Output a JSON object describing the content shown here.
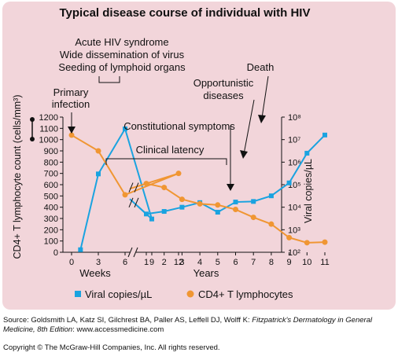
{
  "chart_data": {
    "type": "line",
    "title": "Typical disease course of individual with HIV",
    "left_axis": {
      "label": "CD4+ T lymphocyte count (cells/mm³)",
      "ticks": [
        "0",
        "100",
        "200",
        "300",
        "400",
        "500",
        "600",
        "700",
        "800",
        "900",
        "1000",
        "1100",
        "1200"
      ],
      "ylim": [
        0,
        1200
      ]
    },
    "right_axis": {
      "label": "Viral copies/µL",
      "scale": "log",
      "ticks": [
        "10²",
        "10³",
        "10⁴",
        "10⁵",
        "10⁶",
        "10⁷",
        "10⁸"
      ],
      "ylim": [
        100,
        100000000
      ]
    },
    "x_segments": [
      {
        "label": "Weeks",
        "ticks": [
          "0",
          "3",
          "6",
          "9",
          "12"
        ]
      },
      {
        "label": "Years",
        "ticks": [
          "1",
          "2",
          "3",
          "4",
          "5",
          "6",
          "7",
          "8",
          "9",
          "10",
          "11"
        ]
      }
    ],
    "series": [
      {
        "name": "Viral copies/µL",
        "color": "#1aa3e0",
        "marker": "square",
        "axis": "right",
        "points": [
          {
            "seg": 0,
            "x": 1,
            "y": 130
          },
          {
            "seg": 0,
            "x": 3,
            "y": 300000
          },
          {
            "seg": 0,
            "x": 6,
            "y": 30000000
          },
          {
            "seg": 0,
            "x": 9,
            "y": 3000
          },
          {
            "seg": 1,
            "x": 1,
            "y": 5000
          },
          {
            "seg": 1,
            "x": 2,
            "y": 6500
          },
          {
            "seg": 1,
            "x": 3,
            "y": 10000
          },
          {
            "seg": 1,
            "x": 4,
            "y": 16000
          },
          {
            "seg": 1,
            "x": 5,
            "y": 6000
          },
          {
            "seg": 1,
            "x": 6,
            "y": 17000
          },
          {
            "seg": 1,
            "x": 7,
            "y": 18000
          },
          {
            "seg": 1,
            "x": 8,
            "y": 32000
          },
          {
            "seg": 1,
            "x": 9,
            "y": 120000
          },
          {
            "seg": 1,
            "x": 10,
            "y": 2500000
          },
          {
            "seg": 1,
            "x": 11,
            "y": 16000000
          }
        ]
      },
      {
        "name": "CD4+ T lymphocytes",
        "color": "#f09633",
        "marker": "circle",
        "axis": "left",
        "points": [
          {
            "seg": 0,
            "x": 0,
            "y": 1040
          },
          {
            "seg": 0,
            "x": 3,
            "y": 900
          },
          {
            "seg": 0,
            "x": 6,
            "y": 510
          },
          {
            "seg": 0,
            "x": 12,
            "y": 700
          },
          {
            "seg": 1,
            "x": 1,
            "y": 610
          },
          {
            "seg": 1,
            "x": 2,
            "y": 575
          },
          {
            "seg": 1,
            "x": 3,
            "y": 470
          },
          {
            "seg": 1,
            "x": 4,
            "y": 430
          },
          {
            "seg": 1,
            "x": 5,
            "y": 420
          },
          {
            "seg": 1,
            "x": 6,
            "y": 380
          },
          {
            "seg": 1,
            "x": 7,
            "y": 310
          },
          {
            "seg": 1,
            "x": 8,
            "y": 250
          },
          {
            "seg": 1,
            "x": 9,
            "y": 130
          },
          {
            "seg": 1,
            "x": 10,
            "y": 85
          },
          {
            "seg": 1,
            "x": 11,
            "y": 90
          }
        ]
      }
    ],
    "annotations": {
      "acute_line1": "Acute HIV syndrome",
      "acute_line2": "Wide dissemination of virus",
      "acute_line3": "Seeding of lymphoid organs",
      "primary_line1": "Primary",
      "primary_line2": "infection",
      "opportunistic_line1": "Opportunistic",
      "opportunistic_line2": "diseases",
      "death": "Death",
      "constitutional": "Constitutional symptoms",
      "latency": "Clinical latency"
    },
    "legend": {
      "position": "bottom"
    }
  },
  "footer": {
    "source_prefix": "Source: Goldsmith LA, Katz SI, Gilchrest BA, Paller AS, Leffell DJ, Wolff K: ",
    "source_title": "Fitzpatrick's Dermatology in General Medicine, 8th Edition",
    "source_suffix": ": www.accessmedicine.com",
    "copyright": "Copyright © The McGraw-Hill Companies, Inc. All rights reserved."
  }
}
